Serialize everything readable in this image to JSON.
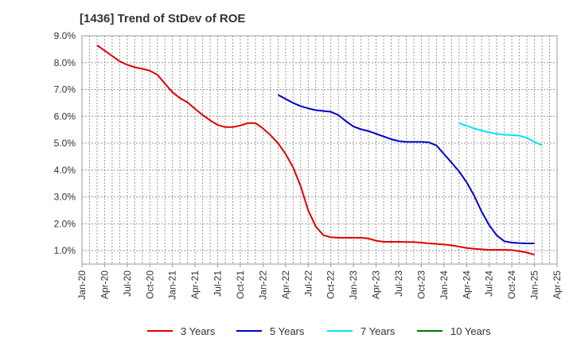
{
  "chart_data": {
    "type": "line",
    "title": "[1436]  Trend of StDev of ROE",
    "xlabel": "",
    "ylabel": "",
    "x_range": [
      "2020-01",
      "2025-04"
    ],
    "ylim": [
      0.5,
      9.0
    ],
    "y_ticks": [
      1.0,
      2.0,
      3.0,
      4.0,
      5.0,
      6.0,
      7.0,
      8.0,
      9.0
    ],
    "y_tick_labels": [
      "1.0%",
      "2.0%",
      "3.0%",
      "4.0%",
      "5.0%",
      "6.0%",
      "7.0%",
      "8.0%",
      "9.0%"
    ],
    "x_ticks": [
      "2020-01",
      "2020-04",
      "2020-07",
      "2020-10",
      "2021-01",
      "2021-04",
      "2021-07",
      "2021-10",
      "2022-01",
      "2022-04",
      "2022-07",
      "2022-10",
      "2023-01",
      "2023-04",
      "2023-07",
      "2023-10",
      "2024-01",
      "2024-04",
      "2024-07",
      "2024-10",
      "2025-01",
      "2025-04"
    ],
    "x_tick_labels": [
      "Jan-20",
      "Apr-20",
      "Jul-20",
      "Oct-20",
      "Jan-21",
      "Apr-21",
      "Jul-21",
      "Oct-21",
      "Jan-22",
      "Apr-22",
      "Jul-22",
      "Oct-22",
      "Jan-23",
      "Apr-23",
      "Jul-23",
      "Oct-23",
      "Jan-24",
      "Apr-24",
      "Jul-24",
      "Oct-24",
      "Jan-25",
      "Apr-25"
    ],
    "grid": true,
    "legend_position": "bottom",
    "series": [
      {
        "name": "3 Years",
        "color": "#e00000",
        "points": [
          [
            "2020-03",
            8.65
          ],
          [
            "2020-04",
            8.45
          ],
          [
            "2020-05",
            8.25
          ],
          [
            "2020-06",
            8.05
          ],
          [
            "2020-07",
            7.92
          ],
          [
            "2020-08",
            7.83
          ],
          [
            "2020-09",
            7.77
          ],
          [
            "2020-10",
            7.7
          ],
          [
            "2020-11",
            7.55
          ],
          [
            "2020-12",
            7.22
          ],
          [
            "2021-01",
            6.9
          ],
          [
            "2021-02",
            6.68
          ],
          [
            "2021-03",
            6.52
          ],
          [
            "2021-04",
            6.28
          ],
          [
            "2021-05",
            6.05
          ],
          [
            "2021-06",
            5.85
          ],
          [
            "2021-07",
            5.68
          ],
          [
            "2021-08",
            5.6
          ],
          [
            "2021-09",
            5.6
          ],
          [
            "2021-10",
            5.66
          ],
          [
            "2021-11",
            5.75
          ],
          [
            "2021-12",
            5.75
          ],
          [
            "2022-01",
            5.55
          ],
          [
            "2022-02",
            5.3
          ],
          [
            "2022-03",
            5.0
          ],
          [
            "2022-04",
            4.6
          ],
          [
            "2022-05",
            4.1
          ],
          [
            "2022-06",
            3.4
          ],
          [
            "2022-07",
            2.5
          ],
          [
            "2022-08",
            1.9
          ],
          [
            "2022-09",
            1.58
          ],
          [
            "2022-10",
            1.5
          ],
          [
            "2022-11",
            1.48
          ],
          [
            "2022-12",
            1.48
          ],
          [
            "2023-01",
            1.48
          ],
          [
            "2023-02",
            1.48
          ],
          [
            "2023-03",
            1.45
          ],
          [
            "2023-04",
            1.37
          ],
          [
            "2023-05",
            1.33
          ],
          [
            "2023-06",
            1.33
          ],
          [
            "2023-07",
            1.33
          ],
          [
            "2023-08",
            1.32
          ],
          [
            "2023-09",
            1.32
          ],
          [
            "2023-10",
            1.3
          ],
          [
            "2023-11",
            1.27
          ],
          [
            "2023-12",
            1.25
          ],
          [
            "2024-01",
            1.23
          ],
          [
            "2024-02",
            1.2
          ],
          [
            "2024-03",
            1.15
          ],
          [
            "2024-04",
            1.1
          ],
          [
            "2024-05",
            1.07
          ],
          [
            "2024-06",
            1.05
          ],
          [
            "2024-07",
            1.03
          ],
          [
            "2024-08",
            1.03
          ],
          [
            "2024-09",
            1.03
          ],
          [
            "2024-10",
            1.02
          ],
          [
            "2024-11",
            0.98
          ],
          [
            "2024-12",
            0.93
          ],
          [
            "2025-01",
            0.85
          ]
        ]
      },
      {
        "name": "5 Years",
        "color": "#0000cc",
        "points": [
          [
            "2022-03",
            6.8
          ],
          [
            "2022-04",
            6.65
          ],
          [
            "2022-05",
            6.5
          ],
          [
            "2022-06",
            6.38
          ],
          [
            "2022-07",
            6.3
          ],
          [
            "2022-08",
            6.23
          ],
          [
            "2022-09",
            6.2
          ],
          [
            "2022-10",
            6.17
          ],
          [
            "2022-11",
            6.05
          ],
          [
            "2022-12",
            5.82
          ],
          [
            "2023-01",
            5.62
          ],
          [
            "2023-02",
            5.52
          ],
          [
            "2023-03",
            5.45
          ],
          [
            "2023-04",
            5.35
          ],
          [
            "2023-05",
            5.25
          ],
          [
            "2023-06",
            5.15
          ],
          [
            "2023-07",
            5.08
          ],
          [
            "2023-08",
            5.05
          ],
          [
            "2023-09",
            5.05
          ],
          [
            "2023-10",
            5.05
          ],
          [
            "2023-11",
            5.03
          ],
          [
            "2023-12",
            4.92
          ],
          [
            "2024-01",
            4.6
          ],
          [
            "2024-02",
            4.28
          ],
          [
            "2024-03",
            3.95
          ],
          [
            "2024-04",
            3.55
          ],
          [
            "2024-05",
            3.05
          ],
          [
            "2024-06",
            2.45
          ],
          [
            "2024-07",
            1.95
          ],
          [
            "2024-08",
            1.57
          ],
          [
            "2024-09",
            1.35
          ],
          [
            "2024-10",
            1.3
          ],
          [
            "2024-11",
            1.28
          ],
          [
            "2024-12",
            1.27
          ],
          [
            "2025-01",
            1.27
          ]
        ]
      },
      {
        "name": "7 Years",
        "color": "#00e5ee",
        "points": [
          [
            "2024-03",
            5.75
          ],
          [
            "2024-04",
            5.65
          ],
          [
            "2024-05",
            5.55
          ],
          [
            "2024-06",
            5.47
          ],
          [
            "2024-07",
            5.4
          ],
          [
            "2024-08",
            5.35
          ],
          [
            "2024-09",
            5.32
          ],
          [
            "2024-10",
            5.3
          ],
          [
            "2024-11",
            5.28
          ],
          [
            "2024-12",
            5.2
          ],
          [
            "2025-01",
            5.05
          ],
          [
            "2025-02",
            4.92
          ]
        ]
      },
      {
        "name": "10 Years",
        "color": "#007700",
        "points": []
      }
    ]
  }
}
